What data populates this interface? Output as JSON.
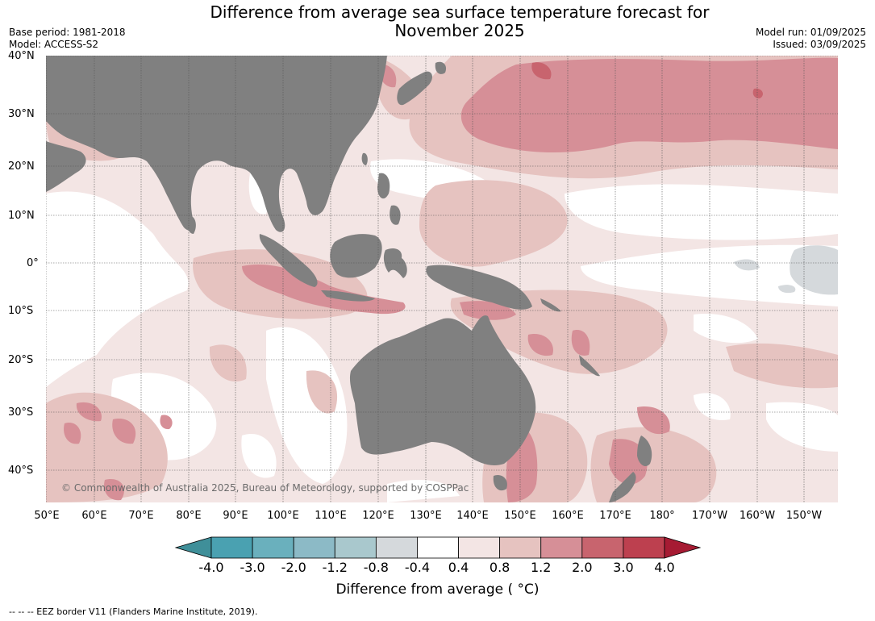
{
  "header": {
    "title_line1": "Difference from average sea surface temperature forecast for",
    "title_line2": "November 2025",
    "base_period": "Base period: 1981-2018",
    "model": "Model: ACCESS-S2",
    "model_run": "Model run: 01/09/2025",
    "issued": "Issued: 03/09/2025"
  },
  "map": {
    "lat_labels": [
      "40°N",
      "30°N",
      "20°N",
      "10°N",
      "0°",
      "10°S",
      "20°S",
      "30°S",
      "40°S"
    ],
    "lon_labels": [
      "50°E",
      "60°E",
      "70°E",
      "80°E",
      "90°E",
      "100°E",
      "110°E",
      "120°E",
      "130°E",
      "140°E",
      "150°E",
      "160°E",
      "170°E",
      "180°",
      "170°W",
      "160°W",
      "150°W"
    ],
    "credit": "© Commonwealth of Australia 2025, Bureau of Meteorology, supported by COSPPac",
    "colors": {
      "land": "#808080",
      "ocean_neutral": "#ffffff",
      "grid": "#555555"
    }
  },
  "colorbar": {
    "ticks": [
      "-4.0",
      "-3.0",
      "-2.0",
      "-1.2",
      "-0.8",
      "-0.4",
      "0.4",
      "0.8",
      "1.2",
      "2.0",
      "3.0",
      "4.0"
    ],
    "colors": [
      "#3f8f99",
      "#4aa1b1",
      "#6ab0bd",
      "#8cbac6",
      "#a9c8cd",
      "#d5d9dc",
      "#ffffff",
      "#f3e5e4",
      "#e6c3c0",
      "#d68f97",
      "#c8646e",
      "#bd404f",
      "#a61b33"
    ],
    "label": "Difference from average ( °C)"
  },
  "footnote": "-- -- -- EEZ border V11 (Flanders Marine Institute, 2019)."
}
